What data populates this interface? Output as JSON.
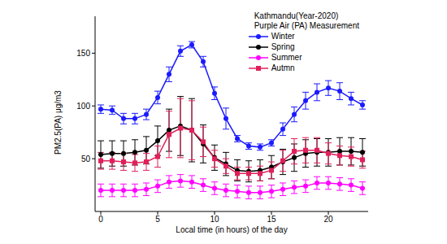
{
  "chart_data": {
    "type": "line",
    "title": "Kathmandu(Year-2020)",
    "subtitle": "Purple Air (PA) Measurement",
    "xlabel": "Local time (in hours) of the day",
    "ylabel": "PM2.5(PA) μg/m3",
    "x": [
      0,
      1,
      2,
      3,
      4,
      5,
      6,
      7,
      8,
      9,
      10,
      11,
      12,
      13,
      14,
      15,
      16,
      17,
      18,
      19,
      20,
      21,
      22,
      23
    ],
    "xlim": [
      -0.5,
      23.5
    ],
    "xticks": [
      0,
      5,
      10,
      15,
      20
    ],
    "ylim": [
      0,
      185
    ],
    "yticks": [
      50,
      100,
      150
    ],
    "grid": false,
    "legend": "upper right",
    "series": [
      {
        "name": "Winter",
        "color": "#1a1aff",
        "marker": "circle",
        "values": [
          97,
          96,
          88,
          88,
          92,
          108,
          130,
          152,
          158,
          142,
          112,
          88,
          69,
          62,
          61,
          65,
          78,
          92,
          105,
          113,
          117,
          114,
          107,
          101
        ],
        "errors": [
          4,
          4,
          5,
          5,
          5,
          6,
          7,
          5,
          3,
          5,
          6,
          10,
          3,
          3,
          3,
          3,
          6,
          7,
          8,
          8,
          7,
          8,
          6,
          4
        ]
      },
      {
        "name": "Spring",
        "color": "#000000",
        "marker": "circle",
        "values": [
          54,
          55,
          55,
          56,
          58,
          67,
          77,
          81,
          77,
          64,
          51,
          45,
          39,
          38,
          39,
          42,
          47,
          51,
          55,
          56,
          56,
          57,
          57,
          56
        ],
        "errors": [
          13,
          12,
          12,
          12,
          13,
          14,
          20,
          28,
          30,
          18,
          12,
          11,
          10,
          10,
          10,
          11,
          12,
          13,
          13,
          13,
          13,
          13,
          13,
          13
        ]
      },
      {
        "name": "Summer",
        "color": "#ff00ff",
        "marker": "circle",
        "values": [
          20,
          20,
          20,
          20,
          21,
          24,
          28,
          29,
          28,
          25,
          22,
          20,
          19,
          18,
          18,
          19,
          21,
          23,
          24,
          27,
          27,
          26,
          25,
          22
        ],
        "errors": [
          6,
          6,
          6,
          6,
          6,
          6,
          6,
          6,
          6,
          6,
          6,
          6,
          6,
          6,
          6,
          6,
          6,
          6,
          6,
          6,
          6,
          6,
          6,
          6
        ]
      },
      {
        "name": "Autmn",
        "color": "#e0205a",
        "marker": "square",
        "values": [
          48,
          48,
          47,
          46,
          47,
          52,
          73,
          79,
          77,
          66,
          50,
          43,
          36,
          36,
          36,
          39,
          48,
          57,
          58,
          58,
          55,
          53,
          52,
          49
        ],
        "errors": [
          8,
          8,
          8,
          8,
          8,
          10,
          22,
          28,
          28,
          14,
          8,
          7,
          6,
          6,
          7,
          8,
          10,
          12,
          12,
          12,
          10,
          9,
          9,
          8
        ]
      }
    ]
  }
}
